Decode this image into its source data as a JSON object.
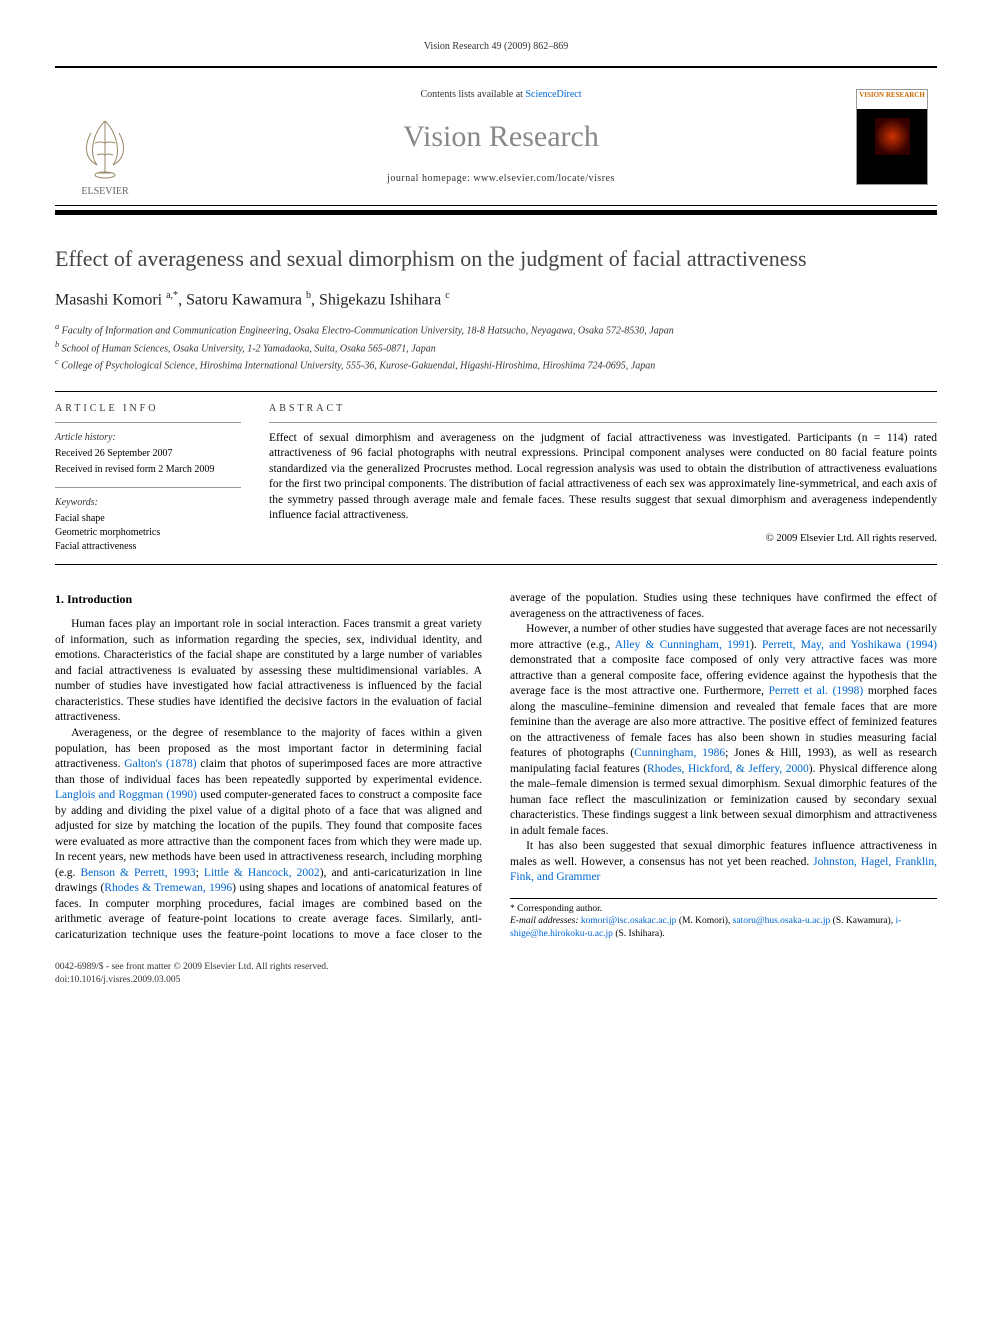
{
  "citation": "Vision Research 49 (2009) 862–869",
  "header": {
    "publisher_name": "ELSEVIER",
    "contents_prefix": "Contents lists available at ",
    "contents_link": "ScienceDirect",
    "journal": "Vision Research",
    "homepage_text": "journal homepage: www.elsevier.com/locate/visres",
    "cover_title": "VISION RESEARCH"
  },
  "title": "Effect of averageness and sexual dimorphism on the judgment of facial attractiveness",
  "authors_html": "Masashi Komori <sup>a,*</sup>, Satoru Kawamura <sup>b</sup>, Shigekazu Ishihara <sup>c</sup>",
  "affiliations": [
    "a Faculty of Information and Communication Engineering, Osaka Electro-Communication University, 18-8 Hatsucho, Neyagawa, Osaka 572-8530, Japan",
    "b School of Human Sciences, Osaka University, 1-2 Yamadaoka, Suita, Osaka 565-0871, Japan",
    "c College of Psychological Science, Hiroshima International University, 555-36, Kurose-Gakuendai, Higashi-Hiroshima, Hiroshima 724-0695, Japan"
  ],
  "article_info": {
    "heading": "ARTICLE INFO",
    "history_label": "Article history:",
    "received": "Received 26 September 2007",
    "revised": "Received in revised form 2 March 2009",
    "keywords_label": "Keywords:",
    "keywords": [
      "Facial shape",
      "Geometric morphometrics",
      "Facial attractiveness"
    ]
  },
  "abstract": {
    "heading": "ABSTRACT",
    "text": "Effect of sexual dimorphism and averageness on the judgment of facial attractiveness was investigated. Participants (n = 114) rated attractiveness of 96 facial photographs with neutral expressions. Principal component analyses were conducted on 80 facial feature points standardized via the generalized Procrustes method. Local regression analysis was used to obtain the distribution of attractiveness evaluations for the first two principal components. The distribution of facial attractiveness of each sex was approximately line-symmetrical, and each axis of the symmetry passed through average male and female faces. These results suggest that sexual dimorphism and averageness independently influence facial attractiveness.",
    "copyright": "© 2009 Elsevier Ltd. All rights reserved."
  },
  "body": {
    "section_heading": "1. Introduction",
    "para1": "Human faces play an important role in social interaction. Faces transmit a great variety of information, such as information regarding the species, sex, individual identity, and emotions. Characteristics of the facial shape are constituted by a large number of variables and facial attractiveness is evaluated by assessing these multidimensional variables. A number of studies have investigated how facial attractiveness is influenced by the facial characteristics. These studies have identified the decisive factors in the evaluation of facial attractiveness.",
    "para2_pre": "Averageness, or the degree of resemblance to the majority of faces within a given population, has been proposed as the most important factor in determining facial attractiveness. ",
    "para2_link1": "Galton's (1878)",
    "para2_mid1": " claim that photos of superimposed faces are more attractive than those of individual faces has been repeatedly supported by experimental evidence. ",
    "para2_link2": "Langlois and Roggman (1990)",
    "para2_mid2": " used computer-generated faces to construct a composite face by adding and dividing the pixel value of a digital photo of a face that was aligned and adjusted for size by matching the location of the pupils. They found that composite faces were evaluated as more attractive than the component faces from which they were made up. In recent years, new methods have been used in attractiveness research, including morphing (e.g. ",
    "para2_link3": "Benson & Perrett, 1993",
    "para2_sep1": "; ",
    "para2_link4": "Little & Hancock, 2002",
    "para2_mid3": "), and anti-caricaturization in line drawings (",
    "para2_link5": "Rhodes & Tremewan, 1996",
    "para2_post": ") using shapes and locations of anatomical features of faces. In computer morphing procedures, facial images are combined based on the arithmetic average of feature-point locations to create average faces. Similarly, anti-caricaturization technique uses the feature-point locations to move a face closer to the average of the population. Studies using these techniques have confirmed the effect of averageness on the attractiveness of faces.",
    "para3_pre": "However, a number of other studies have suggested that average faces are not necessarily more attractive (e.g., ",
    "para3_link1": "Alley & Cunningham, 1991",
    "para3_mid1": "). ",
    "para3_link2": "Perrett, May, and Yoshikawa (1994)",
    "para3_mid2": " demonstrated that a composite face composed of only very attractive faces was more attractive than a general composite face, offering evidence against the hypothesis that the average face is the most attractive one. Furthermore, ",
    "para3_link3": "Perrett et al. (1998)",
    "para3_mid3": " morphed faces along the masculine–feminine dimension and revealed that female faces that are more feminine than the average are also more attractive. The positive effect of feminized features on the attractiveness of female faces has also been shown in studies measuring facial features of photographs (",
    "para3_link4": "Cunningham, 1986",
    "para3_mid4": "; Jones & Hill, 1993), as well as research manipulating facial features (",
    "para3_link5": "Rhodes, Hickford, & Jeffery, 2000",
    "para3_post": "). Physical difference along the male–female dimension is termed sexual dimorphism. Sexual dimorphic features of the human face reflect the masculinization or feminization caused by secondary sexual characteristics. These findings suggest a link between sexual dimorphism and attractiveness in adult female faces.",
    "para4_pre": "It has also been suggested that sexual dimorphic features influence attractiveness in males as well. However, a consensus has not yet been reached. ",
    "para4_link1": "Johnston, Hagel, Franklin, Fink, and Grammer"
  },
  "footnote": {
    "corresponding": "* Corresponding author.",
    "emails_label": "E-mail addresses: ",
    "email1": "komori@isc.osakac.ac.jp",
    "name1": " (M. Komori), ",
    "email2": "satoru@hus.osaka-u.ac.jp",
    "name2": " (S. Kawamura), ",
    "email3": "i-shige@he.hirokoku-u.ac.jp",
    "name3": " (S. Ishihara)."
  },
  "footer": {
    "line1": "0042-6989/$ - see front matter © 2009 Elsevier Ltd. All rights reserved.",
    "line2": "doi:10.1016/j.visres.2009.03.005"
  },
  "colors": {
    "link": "#0066cc",
    "title_gray": "#454545",
    "journal_gray": "#888888",
    "rule": "#000000"
  }
}
